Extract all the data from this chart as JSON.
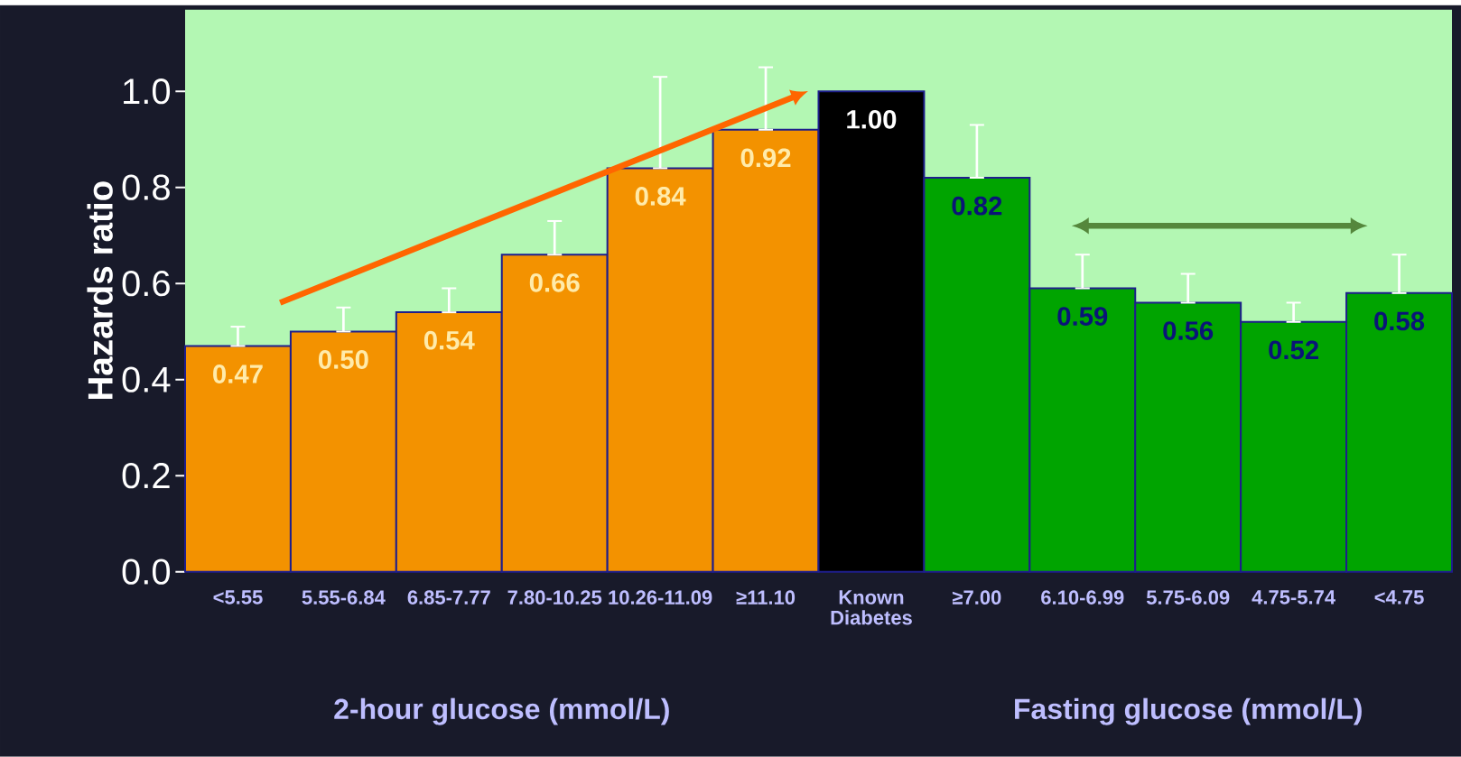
{
  "chart_data": {
    "type": "bar",
    "ylabel": "Hazards ratio",
    "categories": [
      "<5.55",
      "5.55-6.84",
      "6.85-7.77",
      "7.80-10.25",
      "10.26-11.09",
      "≥11.10",
      "Known Diabetes",
      "≥7.00",
      "6.10-6.99",
      "5.75-6.09",
      "4.75-5.74",
      "<4.75"
    ],
    "values": [
      0.47,
      0.5,
      0.54,
      0.66,
      0.84,
      0.92,
      1.0,
      0.82,
      0.59,
      0.56,
      0.52,
      0.58
    ],
    "value_labels": [
      "0.47",
      "0.50",
      "0.54",
      "0.66",
      "0.84",
      "0.92",
      "1.00",
      "0.82",
      "0.59",
      "0.56",
      "0.52",
      "0.58"
    ],
    "colors": [
      "#f39200",
      "#f39200",
      "#f39200",
      "#f39200",
      "#f39200",
      "#f39200",
      "#000000",
      "#00a400",
      "#00a400",
      "#00a400",
      "#00a400",
      "#00a400"
    ],
    "errors": [
      [
        0.47,
        0.51
      ],
      [
        0.5,
        0.55
      ],
      [
        0.54,
        0.59
      ],
      [
        0.66,
        0.73
      ],
      [
        0.84,
        1.03
      ],
      [
        0.92,
        1.05
      ],
      null,
      [
        0.82,
        0.93
      ],
      [
        0.59,
        0.66
      ],
      [
        0.56,
        0.62
      ],
      [
        0.52,
        0.56
      ],
      [
        0.58,
        0.66
      ]
    ],
    "ylim": [
      0,
      1.17
    ],
    "yticks": [
      {
        "value": 0,
        "label": "0.0"
      },
      {
        "value": 0.2,
        "label": "0.2"
      },
      {
        "value": 0.4,
        "label": "0.4"
      },
      {
        "value": 0.6,
        "label": "0.6"
      },
      {
        "value": 0.8,
        "label": "0.8"
      },
      {
        "value": 1.0,
        "label": "1.0"
      }
    ],
    "annotations": [
      "2-hour glucose (mmol/L)",
      "Fasting glucose (mmol/L)"
    ]
  }
}
